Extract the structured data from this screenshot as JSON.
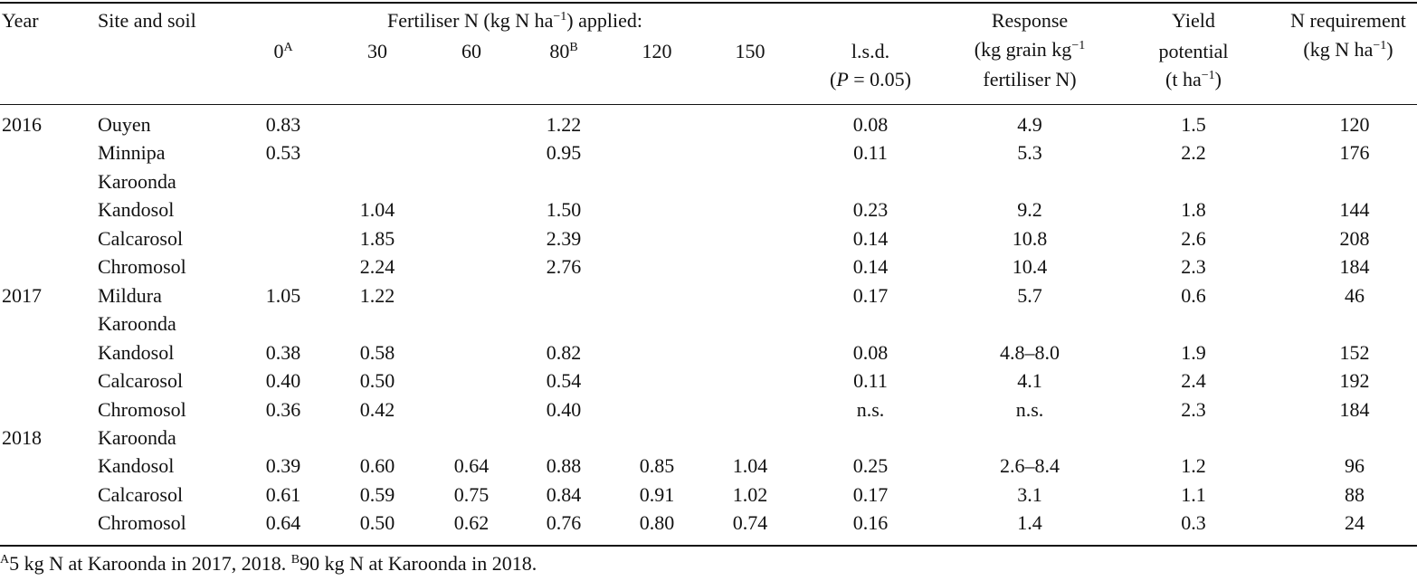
{
  "header": {
    "year": "Year",
    "site": "Site and soil",
    "fert_group": "Fertiliser N (kg N ha",
    "fert_group_sup": "−1",
    "fert_group_end": ") applied:",
    "rates": [
      {
        "label": "0",
        "sup": "A"
      },
      {
        "label": "30",
        "sup": ""
      },
      {
        "label": "60",
        "sup": ""
      },
      {
        "label": "80",
        "sup": "B"
      },
      {
        "label": "120",
        "sup": ""
      },
      {
        "label": "150",
        "sup": ""
      }
    ],
    "lsd_line1": "l.s.d.",
    "lsd_p": "P",
    "lsd_line2_rest": " = 0.05)",
    "lsd_open": "(",
    "response_line1": "Response",
    "response_line2a": "(kg grain kg",
    "response_line2_sup": "−1",
    "response_line3": "fertiliser N)",
    "yield_line1": "Yield",
    "yield_line2": "potential",
    "yield_line3a": "(t ha",
    "yield_line3_sup": "−1",
    "yield_line3b": ")",
    "nreq_line1": "N requirement",
    "nreq_line2a": "(kg N ha",
    "nreq_line2_sup": "−1",
    "nreq_line2b": ")"
  },
  "rows": [
    {
      "year": "2016",
      "site": "Ouyen",
      "indent": false,
      "v0": "0.83",
      "v30": "",
      "v60": "",
      "v80": "1.22",
      "v120": "",
      "v150": "",
      "lsd": "0.08",
      "resp": "4.9",
      "yield": "1.5",
      "nreq": "120"
    },
    {
      "year": "",
      "site": "Minnipa",
      "indent": false,
      "v0": "0.53",
      "v30": "",
      "v60": "",
      "v80": "0.95",
      "v120": "",
      "v150": "",
      "lsd": "0.11",
      "resp": "5.3",
      "yield": "2.2",
      "nreq": "176"
    },
    {
      "year": "",
      "site": "Karoonda",
      "indent": false,
      "v0": "",
      "v30": "",
      "v60": "",
      "v80": "",
      "v120": "",
      "v150": "",
      "lsd": "",
      "resp": "",
      "yield": "",
      "nreq": ""
    },
    {
      "year": "",
      "site": "Kandosol",
      "indent": false,
      "v0": "",
      "v30": "1.04",
      "v60": "",
      "v80": "1.50",
      "v120": "",
      "v150": "",
      "lsd": "0.23",
      "resp": "9.2",
      "yield": "1.8",
      "nreq": "144"
    },
    {
      "year": "",
      "site": "Calcarosol",
      "indent": false,
      "v0": "",
      "v30": "1.85",
      "v60": "",
      "v80": "2.39",
      "v120": "",
      "v150": "",
      "lsd": "0.14",
      "resp": "10.8",
      "yield": "2.6",
      "nreq": "208"
    },
    {
      "year": "",
      "site": "Chromosol",
      "indent": false,
      "v0": "",
      "v30": "2.24",
      "v60": "",
      "v80": "2.76",
      "v120": "",
      "v150": "",
      "lsd": "0.14",
      "resp": "10.4",
      "yield": "2.3",
      "nreq": "184"
    },
    {
      "year": "2017",
      "site": "Mildura",
      "indent": false,
      "v0": "1.05",
      "v30": "1.22",
      "v60": "",
      "v80": "",
      "v120": "",
      "v150": "",
      "lsd": "0.17",
      "resp": "5.7",
      "yield": "0.6",
      "nreq": "46"
    },
    {
      "year": "",
      "site": "Karoonda",
      "indent": false,
      "v0": "",
      "v30": "",
      "v60": "",
      "v80": "",
      "v120": "",
      "v150": "",
      "lsd": "",
      "resp": "",
      "yield": "",
      "nreq": ""
    },
    {
      "year": "",
      "site": "Kandosol",
      "indent": false,
      "v0": "0.38",
      "v30": "0.58",
      "v60": "",
      "v80": "0.82",
      "v120": "",
      "v150": "",
      "lsd": "0.08",
      "resp": "4.8–8.0",
      "yield": "1.9",
      "nreq": "152"
    },
    {
      "year": "",
      "site": "Calcarosol",
      "indent": false,
      "v0": "0.40",
      "v30": "0.50",
      "v60": "",
      "v80": "0.54",
      "v120": "",
      "v150": "",
      "lsd": "0.11",
      "resp": "4.1",
      "yield": "2.4",
      "nreq": "192"
    },
    {
      "year": "",
      "site": "Chromosol",
      "indent": false,
      "v0": "0.36",
      "v30": "0.42",
      "v60": "",
      "v80": "0.40",
      "v120": "",
      "v150": "",
      "lsd": "n.s.",
      "resp": "n.s.",
      "yield": "2.3",
      "nreq": "184"
    },
    {
      "year": "2018",
      "site": "Karoonda",
      "indent": false,
      "v0": "",
      "v30": "",
      "v60": "",
      "v80": "",
      "v120": "",
      "v150": "",
      "lsd": "",
      "resp": "",
      "yield": "",
      "nreq": ""
    },
    {
      "year": "",
      "site": "Kandosol",
      "indent": false,
      "v0": "0.39",
      "v30": "0.60",
      "v60": "0.64",
      "v80": "0.88",
      "v120": "0.85",
      "v150": "1.04",
      "lsd": "0.25",
      "resp": "2.6–8.4",
      "yield": "1.2",
      "nreq": "96"
    },
    {
      "year": "",
      "site": "Calcarosol",
      "indent": false,
      "v0": "0.61",
      "v30": "0.59",
      "v60": "0.75",
      "v80": "0.84",
      "v120": "0.91",
      "v150": "1.02",
      "lsd": "0.17",
      "resp": "3.1",
      "yield": "1.1",
      "nreq": "88"
    },
    {
      "year": "",
      "site": "Chromosol",
      "indent": false,
      "v0": "0.64",
      "v30": "0.50",
      "v60": "0.62",
      "v80": "0.76",
      "v120": "0.80",
      "v150": "0.74",
      "lsd": "0.16",
      "resp": "1.4",
      "yield": "0.3",
      "nreq": "24"
    }
  ],
  "footnote": {
    "a_sup": "A",
    "a_text": "5 kg N at Karoonda in 2017, 2018. ",
    "b_sup": "B",
    "b_text": "90 kg N at Karoonda in 2018."
  }
}
